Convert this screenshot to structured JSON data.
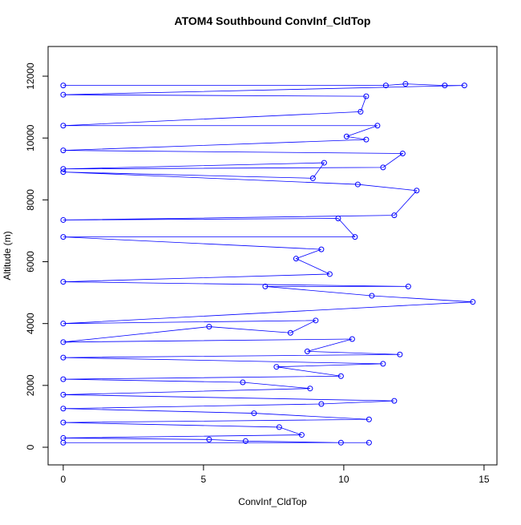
{
  "chart_data": {
    "type": "line",
    "title": "ATOM4 Southbound ConvInf_CldTop",
    "xlabel": "ConvInf_CldTop",
    "ylabel": "Altitude (m)",
    "xlim": [
      -0.54,
      15.46
    ],
    "ylim": [
      -570,
      12960
    ],
    "xticks": [
      0,
      5,
      10,
      15
    ],
    "yticks": [
      0,
      2000,
      4000,
      6000,
      8000,
      10000,
      12000
    ],
    "x": [
      0,
      11.5,
      12.2,
      13.6,
      14.3,
      0,
      10.8,
      10.6,
      0,
      11.2,
      10.1,
      10.8,
      0,
      12.1,
      11.4,
      0,
      9.3,
      8.9,
      0,
      10.5,
      12.6,
      11.8,
      0,
      9.8,
      10.4,
      0,
      9.2,
      8.3,
      9.5,
      0,
      12.3,
      7.2,
      11.0,
      14.6,
      0,
      9.0,
      8.1,
      5.2,
      0,
      10.3,
      8.7,
      12.0,
      0,
      11.4,
      7.6,
      9.9,
      0,
      6.4,
      8.8,
      0,
      11.8,
      9.2,
      0,
      6.8,
      10.9,
      0,
      7.7,
      8.5,
      0,
      5.2,
      6.5,
      9.9,
      10.9,
      0
    ],
    "series": [
      {
        "color": "#0000ff",
        "values": [
          11700,
          11700,
          11750,
          11700,
          11700,
          11400,
          11350,
          10850,
          10400,
          10400,
          10050,
          9950,
          9600,
          9500,
          9050,
          9000,
          9200,
          8700,
          8900,
          8500,
          8300,
          7500,
          7350,
          7400,
          6800,
          6800,
          6400,
          6100,
          5600,
          5350,
          5200,
          5200,
          4900,
          4700,
          4000,
          4100,
          3700,
          3900,
          3400,
          3500,
          3100,
          3000,
          2900,
          2700,
          2600,
          2300,
          2200,
          2100,
          1900,
          1700,
          1500,
          1400,
          1250,
          1100,
          900,
          800,
          650,
          400,
          300,
          250,
          200,
          150,
          150,
          150
        ]
      }
    ]
  }
}
